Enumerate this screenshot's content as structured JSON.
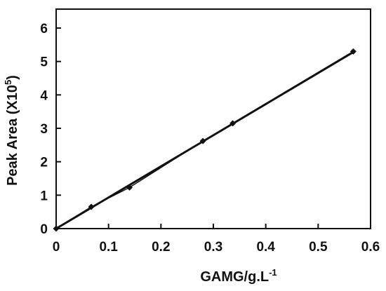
{
  "chart_data": {
    "type": "scatter",
    "title": "",
    "xlabel": "GAMG/g.L",
    "xlabel_sup": "-1",
    "ylabel": "Peak Area (X10",
    "ylabel_sup": "5",
    "ylabel_suffix": ")",
    "xlim": [
      0,
      0.6
    ],
    "ylim": [
      0,
      6.2
    ],
    "xticks": [
      "0",
      "0.1",
      "0.2",
      "0.3",
      "0.4",
      "0.5",
      "0.6"
    ],
    "yticks": [
      "0",
      "1",
      "2",
      "3",
      "4",
      "5",
      "6"
    ],
    "grid": false,
    "legend": "none",
    "series": [
      {
        "x": [
          0,
          0.067,
          0.14,
          0.28,
          0.337,
          0.567
        ],
        "y": [
          0,
          0.65,
          1.23,
          2.62,
          3.15,
          5.3
        ]
      }
    ],
    "trendline": {
      "x": [
        0,
        0.567
      ],
      "y": [
        0,
        5.28
      ]
    },
    "colors": {
      "line": "#111111",
      "marker": "#111111"
    }
  }
}
